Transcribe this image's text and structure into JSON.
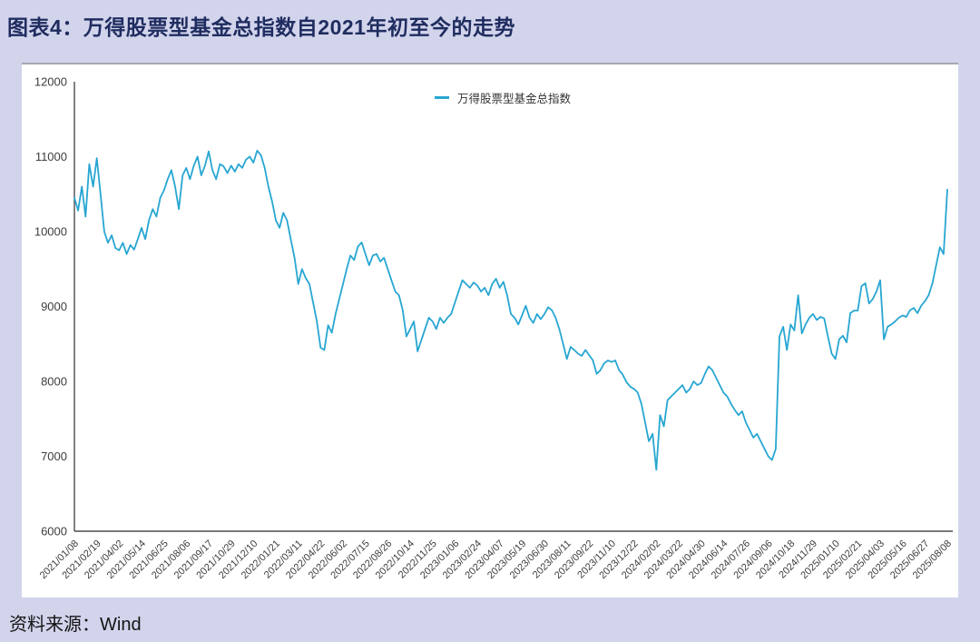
{
  "page": {
    "title": "图表4：万得股票型基金总指数自2021年初至今的走势",
    "source": "资料来源：Wind",
    "background_color": "#d2d4ec",
    "title_color": "#1f2c5f"
  },
  "chart_data": {
    "type": "line",
    "title": "",
    "xlabel": "",
    "ylabel": "",
    "legend_entries": [
      "万得股票型基金总指数"
    ],
    "legend_position": "top-center",
    "grid": false,
    "line_color": "#27a6d2",
    "axis_color": "#4d4d4d",
    "tick_text_color": "#3d3d3d",
    "ylim": [
      6000,
      12000
    ],
    "yticks": [
      6000,
      7000,
      8000,
      9000,
      10000,
      11000,
      12000
    ],
    "points_per_xtick": 6,
    "x_tick_labels": [
      "2021/01/08",
      "2021/02/19",
      "2021/04/02",
      "2021/05/14",
      "2021/06/25",
      "2021/08/06",
      "2021/09/17",
      "2021/10/29",
      "2021/12/10",
      "2022/01/21",
      "2022/03/11",
      "2022/04/22",
      "2022/06/02",
      "2022/07/15",
      "2022/08/26",
      "2022/10/14",
      "2022/11/25",
      "2023/01/06",
      "2023/02/24",
      "2023/04/07",
      "2023/05/19",
      "2023/06/30",
      "2023/08/11",
      "2023/09/22",
      "2023/11/10",
      "2023/12/22",
      "2024/02/02",
      "2024/03/22",
      "2024/04/30",
      "2024/06/14",
      "2024/07/26",
      "2024/09/06",
      "2024/10/18",
      "2024/11/29",
      "2025/01/10",
      "2025/02/21",
      "2025/04/03",
      "2025/05/16",
      "2025/06/27",
      "2025/08/08"
    ],
    "series": [
      {
        "name": "万得股票型基金总指数",
        "values": [
          10450,
          10280,
          10600,
          10200,
          10900,
          10600,
          10980,
          10500,
          10000,
          9850,
          9950,
          9780,
          9750,
          9850,
          9700,
          9820,
          9760,
          9900,
          10050,
          9900,
          10150,
          10300,
          10200,
          10450,
          10550,
          10700,
          10820,
          10600,
          10300,
          10750,
          10850,
          10700,
          10880,
          11000,
          10750,
          10880,
          11070,
          10820,
          10700,
          10900,
          10870,
          10780,
          10880,
          10800,
          10900,
          10850,
          10960,
          11000,
          10920,
          11080,
          11020,
          10850,
          10600,
          10400,
          10150,
          10050,
          10250,
          10150,
          9900,
          9650,
          9300,
          9500,
          9380,
          9300,
          9050,
          8800,
          8450,
          8420,
          8750,
          8650,
          8900,
          9100,
          9300,
          9500,
          9680,
          9620,
          9800,
          9855,
          9700,
          9550,
          9680,
          9700,
          9600,
          9650,
          9500,
          9350,
          9200,
          9150,
          8950,
          8600,
          8700,
          8800,
          8400,
          8550,
          8700,
          8850,
          8800,
          8700,
          8850,
          8780,
          8850,
          8900,
          9050,
          9200,
          9350,
          9300,
          9250,
          9320,
          9280,
          9200,
          9250,
          9150,
          9300,
          9370,
          9250,
          9330,
          9150,
          8900,
          8850,
          8760,
          8880,
          9010,
          8850,
          8780,
          8900,
          8830,
          8900,
          8990,
          8950,
          8850,
          8700,
          8500,
          8300,
          8460,
          8420,
          8370,
          8340,
          8420,
          8350,
          8280,
          8100,
          8150,
          8240,
          8280,
          8260,
          8280,
          8150,
          8090,
          7990,
          7930,
          7900,
          7850,
          7700,
          7450,
          7200,
          7300,
          6820,
          7550,
          7400,
          7750,
          7800,
          7850,
          7900,
          7950,
          7850,
          7900,
          8000,
          7950,
          7980,
          8100,
          8200,
          8150,
          8050,
          7950,
          7850,
          7800,
          7700,
          7620,
          7550,
          7600,
          7450,
          7350,
          7250,
          7300,
          7200,
          7100,
          7000,
          6950,
          7100,
          8600,
          8730,
          8420,
          8760,
          8680,
          9150,
          8640,
          8760,
          8850,
          8900,
          8820,
          8860,
          8840,
          8600,
          8370,
          8300,
          8560,
          8610,
          8520,
          8910,
          8945,
          8945,
          9270,
          9310,
          9040,
          9100,
          9200,
          9350,
          8560,
          8730,
          8760,
          8800,
          8850,
          8880,
          8860,
          8950,
          8980,
          8910,
          9010,
          9070,
          9150,
          9310,
          9550,
          9790,
          9700,
          10560
        ]
      }
    ]
  }
}
